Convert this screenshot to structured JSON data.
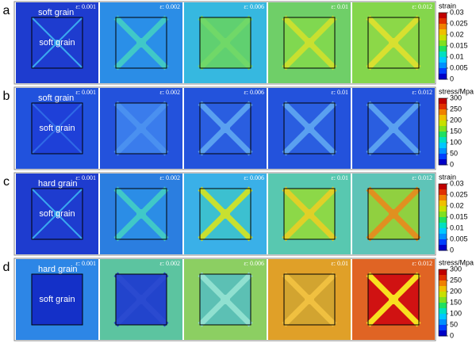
{
  "panels": [
    {
      "label": "a",
      "outer_grain": "soft grain",
      "inner_grain": "soft grain",
      "strains": [
        "ε: 0.001",
        "ε: 0.002",
        "ε: 0.006",
        "ε: 0.01",
        "ε: 0.012"
      ],
      "colorbar": {
        "title": "strain",
        "ticks": [
          "0.03",
          "0.025",
          "0.02",
          "0.015",
          "0.01",
          "0.005",
          "0"
        ]
      }
    },
    {
      "label": "b",
      "outer_grain": "soft grain",
      "inner_grain": "soft grain",
      "strains": [
        "ε: 0.001",
        "ε: 0.002",
        "ε: 0.006",
        "ε: 0.01",
        "ε: 0.012"
      ],
      "colorbar": {
        "title": "stress/Mpa",
        "ticks": [
          "300",
          "250",
          "200",
          "150",
          "100",
          "50",
          "0"
        ]
      }
    },
    {
      "label": "c",
      "outer_grain": "hard grain",
      "inner_grain": "soft grain",
      "strains": [
        "ε: 0.001",
        "ε: 0.002",
        "ε: 0.006",
        "ε: 0.01",
        "ε: 0.012"
      ],
      "colorbar": {
        "title": "strain",
        "ticks": [
          "0.03",
          "0.025",
          "0.02",
          "0.015",
          "0.01",
          "0.005",
          "0"
        ]
      }
    },
    {
      "label": "d",
      "outer_grain": "hard grain",
      "inner_grain": "soft grain",
      "strains": [
        "ε: 0.001",
        "ε: 0.002",
        "ε: 0.006",
        "ε: 0.01",
        "ε: 0.012"
      ],
      "colorbar": {
        "title": "stress/Mpa",
        "ticks": [
          "300",
          "250",
          "200",
          "150",
          "100",
          "50",
          "0"
        ]
      }
    }
  ]
}
